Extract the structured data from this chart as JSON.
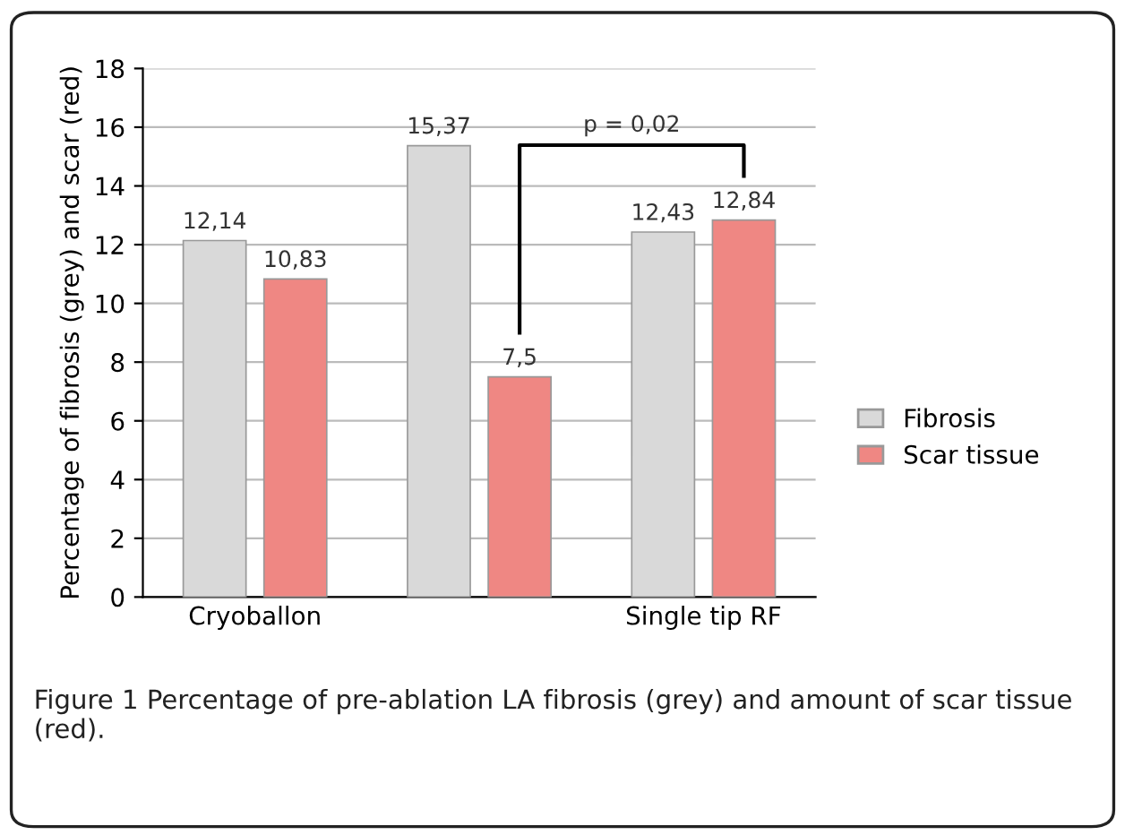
{
  "chart_data": {
    "type": "bar",
    "ylabel": "Percentage of fibrosis (grey) and scar (red)",
    "categories": [
      "Cryoballon",
      null,
      "Single tip RF"
    ],
    "series": [
      {
        "name": "Fibrosis",
        "color": "#d9d9d9",
        "values": [
          12.14,
          15.37,
          12.43
        ],
        "value_labels": [
          "12,14",
          "15,37",
          "12,43"
        ]
      },
      {
        "name": "Scar tissue",
        "color": "#ef8783",
        "values": [
          10.83,
          7.5,
          12.84
        ],
        "value_labels": [
          "10,83",
          "7,5",
          "12,84"
        ]
      }
    ],
    "ylim": [
      0,
      18
    ],
    "yticks": [
      0,
      2,
      4,
      6,
      8,
      10,
      12,
      14,
      16,
      18
    ],
    "grid": "y",
    "legend": "right",
    "annotations": [
      "p = 0,02",
      "Figure 1 Percentage of pre-ablation LA fibrosis (grey) and amount of scar tissue (red)."
    ]
  }
}
